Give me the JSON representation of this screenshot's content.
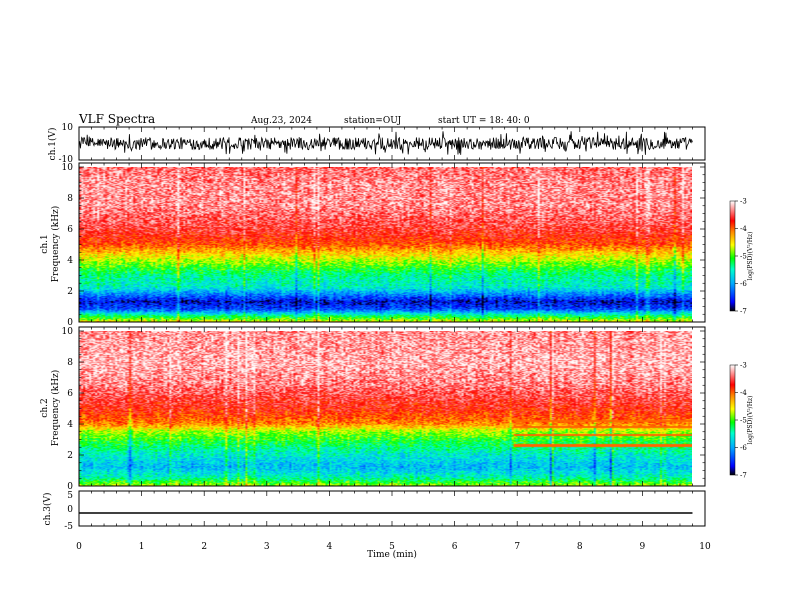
{
  "header": {
    "title": "VLF Spectra",
    "date": "Aug.23, 2024",
    "station": "station=OUJ",
    "start": "start  UT =   18: 40: 0"
  },
  "colors": {
    "spectrum_scale": [
      "#000000",
      "#0000ff",
      "#00aaff",
      "#00ffcc",
      "#00ff00",
      "#ffff00",
      "#ff8800",
      "#ff0000",
      "#ffffff"
    ]
  },
  "chart_data": [
    {
      "name": "ch1-waveform",
      "type": "line",
      "ylabel": "ch.1(V)",
      "yticks": [
        "10",
        "-10"
      ],
      "ylim": [
        -10,
        10
      ],
      "x_range_min": [
        0,
        9.8
      ],
      "description_values": {
        "mean": 0,
        "typical_amplitude": 4,
        "peak_amplitude": 8
      }
    },
    {
      "name": "ch1-spectrogram",
      "type": "heatmap",
      "ylabel": "ch.1\nFrequency  (kHz)",
      "ylabel_lines": [
        "ch.1",
        "Frequency  (kHz)"
      ],
      "yticks": [
        "0",
        "2",
        "4",
        "6",
        "8",
        "10"
      ],
      "ylim_khz": [
        0,
        10
      ],
      "colorbar": {
        "label": "log(PSD)(V²/Hz)",
        "ticks": [
          "-3",
          "-4",
          "-5",
          "-6",
          "-7"
        ],
        "range": [
          -7,
          -3
        ]
      },
      "profile": [
        {
          "f_khz": 0.0,
          "logpsd": -4.6
        },
        {
          "f_khz": 0.4,
          "logpsd": -5.4
        },
        {
          "f_khz": 0.8,
          "logpsd": -6.4
        },
        {
          "f_khz": 1.3,
          "logpsd": -6.7
        },
        {
          "f_khz": 1.8,
          "logpsd": -6.1
        },
        {
          "f_khz": 2.2,
          "logpsd": -5.6
        },
        {
          "f_khz": 3.0,
          "logpsd": -5.4
        },
        {
          "f_khz": 3.6,
          "logpsd": -5.0
        },
        {
          "f_khz": 4.3,
          "logpsd": -4.5
        },
        {
          "f_khz": 5.0,
          "logpsd": -3.9
        },
        {
          "f_khz": 6.0,
          "logpsd": -3.55
        },
        {
          "f_khz": 7.5,
          "logpsd": -3.3
        },
        {
          "f_khz": 9.0,
          "logpsd": -3.3
        },
        {
          "f_khz": 10.0,
          "logpsd": -3.4
        }
      ]
    },
    {
      "name": "ch2-spectrogram",
      "type": "heatmap",
      "ylabel_lines": [
        "ch.2",
        "Frequency  (kHz)"
      ],
      "yticks": [
        "0",
        "2",
        "4",
        "6",
        "8",
        "10"
      ],
      "ylim_khz": [
        0,
        10
      ],
      "colorbar": {
        "label": "log(PSD)(V²/Hz)",
        "ticks": [
          "-3",
          "-4",
          "-5",
          "-6",
          "-7"
        ],
        "range": [
          -7,
          -3
        ]
      },
      "profile": [
        {
          "f_khz": 0.0,
          "logpsd": -4.8
        },
        {
          "f_khz": 0.5,
          "logpsd": -5.5
        },
        {
          "f_khz": 1.2,
          "logpsd": -5.9
        },
        {
          "f_khz": 2.0,
          "logpsd": -5.6
        },
        {
          "f_khz": 2.8,
          "logpsd": -5.2
        },
        {
          "f_khz": 3.5,
          "logpsd": -4.8
        },
        {
          "f_khz": 4.0,
          "logpsd": -4.1
        },
        {
          "f_khz": 5.0,
          "logpsd": -3.7
        },
        {
          "f_khz": 6.5,
          "logpsd": -3.35
        },
        {
          "f_khz": 8.0,
          "logpsd": -3.2
        },
        {
          "f_khz": 10.0,
          "logpsd": -3.3
        }
      ],
      "features": [
        {
          "label": "tone-lines",
          "t_start_min": 6.95,
          "t_end_min": 9.8,
          "f_khz": [
            2.6,
            3.3,
            3.8,
            4.2
          ]
        }
      ]
    },
    {
      "name": "ch3-waveform",
      "type": "line",
      "ylabel": "ch.3(V)",
      "yticks": [
        "5",
        "0",
        "-5"
      ],
      "ylim": [
        -5,
        5
      ],
      "constant_value": -1.5
    }
  ],
  "x_axis": {
    "label": "Time  (min)",
    "ticks": [
      "0",
      "1",
      "2",
      "3",
      "4",
      "5",
      "6",
      "7",
      "8",
      "9",
      "10"
    ],
    "range": [
      0,
      10
    ],
    "data_end_min": 9.8
  }
}
